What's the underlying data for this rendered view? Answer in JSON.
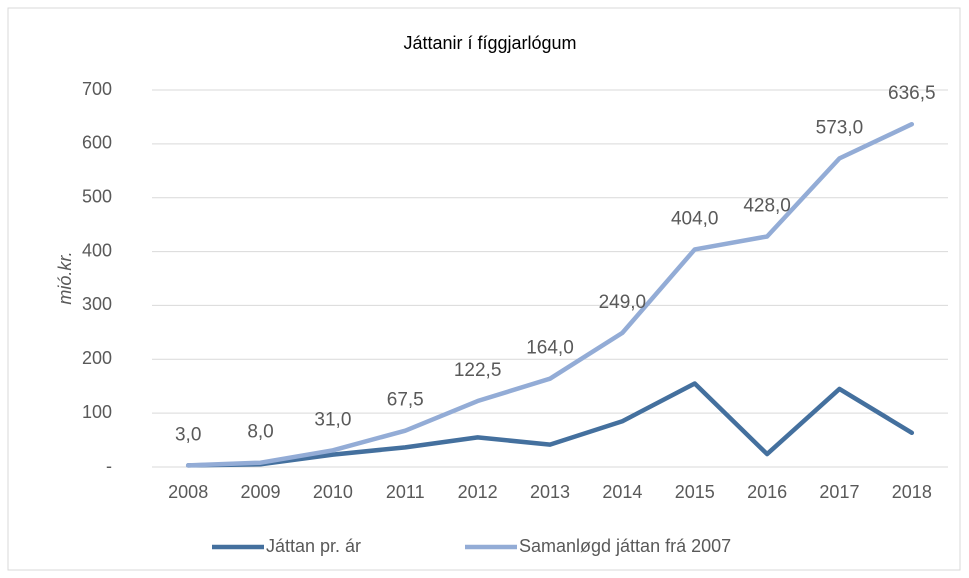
{
  "chart_data": {
    "type": "line",
    "title": "Játtanir í fíggjarlógum",
    "y_label": "mió.kr.",
    "categories": [
      "2008",
      "2009",
      "2010",
      "2011",
      "2012",
      "2013",
      "2014",
      "2015",
      "2016",
      "2017",
      "2018"
    ],
    "series": [
      {
        "name": "Játtan pr. ár",
        "color": "#44709e",
        "values": [
          3,
          5,
          23,
          36.5,
          55,
          41.5,
          85,
          155,
          24,
          145,
          63.5
        ]
      },
      {
        "name": "Samanløgd játtan frá 2007",
        "color": "#93acd6",
        "values": [
          3,
          8,
          31,
          67.5,
          122.5,
          164,
          249,
          404,
          428,
          573,
          636.5
        ],
        "value_labels": [
          "3,0",
          "8,0",
          "31,0",
          "67,5",
          "122,5",
          "164,0",
          "249,0",
          "404,0",
          "428,0",
          "573,0",
          "636,5"
        ]
      }
    ],
    "ylim": [
      0,
      700
    ],
    "yticks": [
      {
        "value": 0,
        "label": "-"
      },
      100,
      200,
      300,
      400,
      500,
      600,
      700
    ],
    "grid": true,
    "legend": "bottom"
  }
}
